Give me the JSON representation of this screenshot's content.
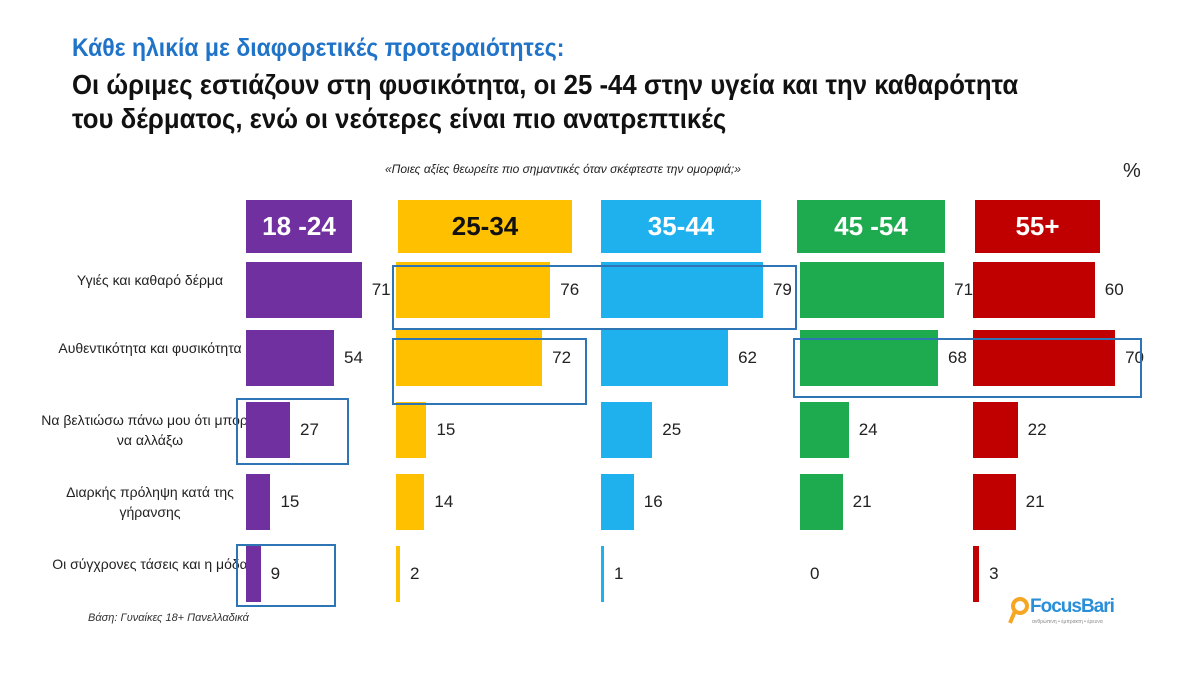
{
  "chart_data": {
    "type": "bar",
    "title": "Κάθε ηλικία με διαφορετικές προτεραιότητες:",
    "subtitle": "Οι ώριμες εστιάζουν στη φυσικότητα, οι 25 -44 στην υγεία και την καθαρότητα του δέρματος, ενώ οι νεότερες είναι πιο ανατρεπτικές",
    "question": "«Ποιες  αξίες θεωρείτε πιο σημαντικές όταν σκέφτεστε την ομορφιά;»",
    "unit": "%",
    "categories": [
      "Υγιές και καθαρό δέρμα",
      "Αυθεντικότητα και φυσικότητα",
      "Να βελτιώσω πάνω μου ότι μπορώ να αλλάξω",
      "Διαρκής πρόληψη κατά της γήρανσης",
      "Οι σύγχρονες τάσεις και η μόδα"
    ],
    "series": [
      {
        "name": "18 -24",
        "color": "#7030A0",
        "values": [
          71,
          54,
          27,
          15,
          9
        ]
      },
      {
        "name": "25-34",
        "color": "#FFC000",
        "values": [
          76,
          72,
          15,
          14,
          2
        ]
      },
      {
        "name": "35-44",
        "color": "#1FB1EE",
        "values": [
          79,
          62,
          25,
          16,
          1
        ]
      },
      {
        "name": "45 -54",
        "color": "#1EAA4E",
        "values": [
          71,
          68,
          24,
          21,
          0
        ]
      },
      {
        "name": "55+",
        "color": "#C00000",
        "values": [
          60,
          70,
          22,
          21,
          3
        ]
      }
    ],
    "highlights": [
      [
        1,
        0
      ],
      [
        2,
        0
      ],
      [
        1,
        1
      ],
      [
        3,
        1
      ],
      [
        4,
        1
      ],
      [
        0,
        2
      ],
      [
        0,
        4
      ]
    ],
    "base_note": "Βάση: Γυναίκες 18+ Πανελλαδικά"
  },
  "logo": {
    "name": "FocusBari",
    "tagline": "ανθρώπινη • έμπρακτη • έρευνα"
  }
}
